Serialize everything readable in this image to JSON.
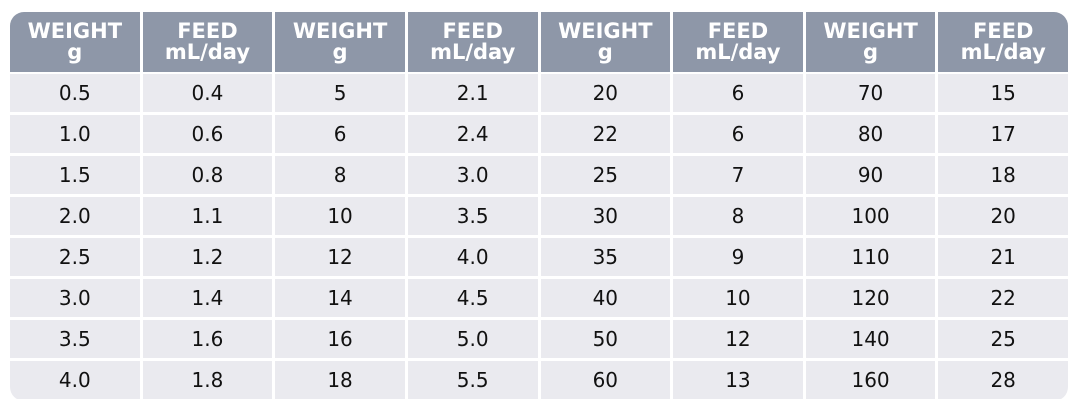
{
  "table": {
    "headers": [
      {
        "line1": "WEIGHT",
        "line2": "g"
      },
      {
        "line1": "FEED",
        "line2": "mL/day"
      },
      {
        "line1": "WEIGHT",
        "line2": "g"
      },
      {
        "line1": "FEED",
        "line2": "mL/day"
      },
      {
        "line1": "WEIGHT",
        "line2": "g"
      },
      {
        "line1": "FEED",
        "line2": "mL/day"
      },
      {
        "line1": "WEIGHT",
        "line2": "g"
      },
      {
        "line1": "FEED",
        "line2": "mL/day"
      }
    ],
    "rows": [
      [
        "0.5",
        "0.4",
        "5",
        "2.1",
        "20",
        "6",
        "70",
        "15"
      ],
      [
        "1.0",
        "0.6",
        "6",
        "2.4",
        "22",
        "6",
        "80",
        "17"
      ],
      [
        "1.5",
        "0.8",
        "8",
        "3.0",
        "25",
        "7",
        "90",
        "18"
      ],
      [
        "2.0",
        "1.1",
        "10",
        "3.5",
        "30",
        "8",
        "100",
        "20"
      ],
      [
        "2.5",
        "1.2",
        "12",
        "4.0",
        "35",
        "9",
        "110",
        "21"
      ],
      [
        "3.0",
        "1.4",
        "14",
        "4.5",
        "40",
        "10",
        "120",
        "22"
      ],
      [
        "3.5",
        "1.6",
        "16",
        "5.0",
        "50",
        "12",
        "140",
        "25"
      ],
      [
        "4.0",
        "1.8",
        "18",
        "5.5",
        "60",
        "13",
        "160",
        "28"
      ]
    ]
  },
  "colors": {
    "header_bg": "#8e97a8",
    "header_text": "#ffffff",
    "cell_bg": "#eaeaef",
    "cell_text": "#111111"
  }
}
